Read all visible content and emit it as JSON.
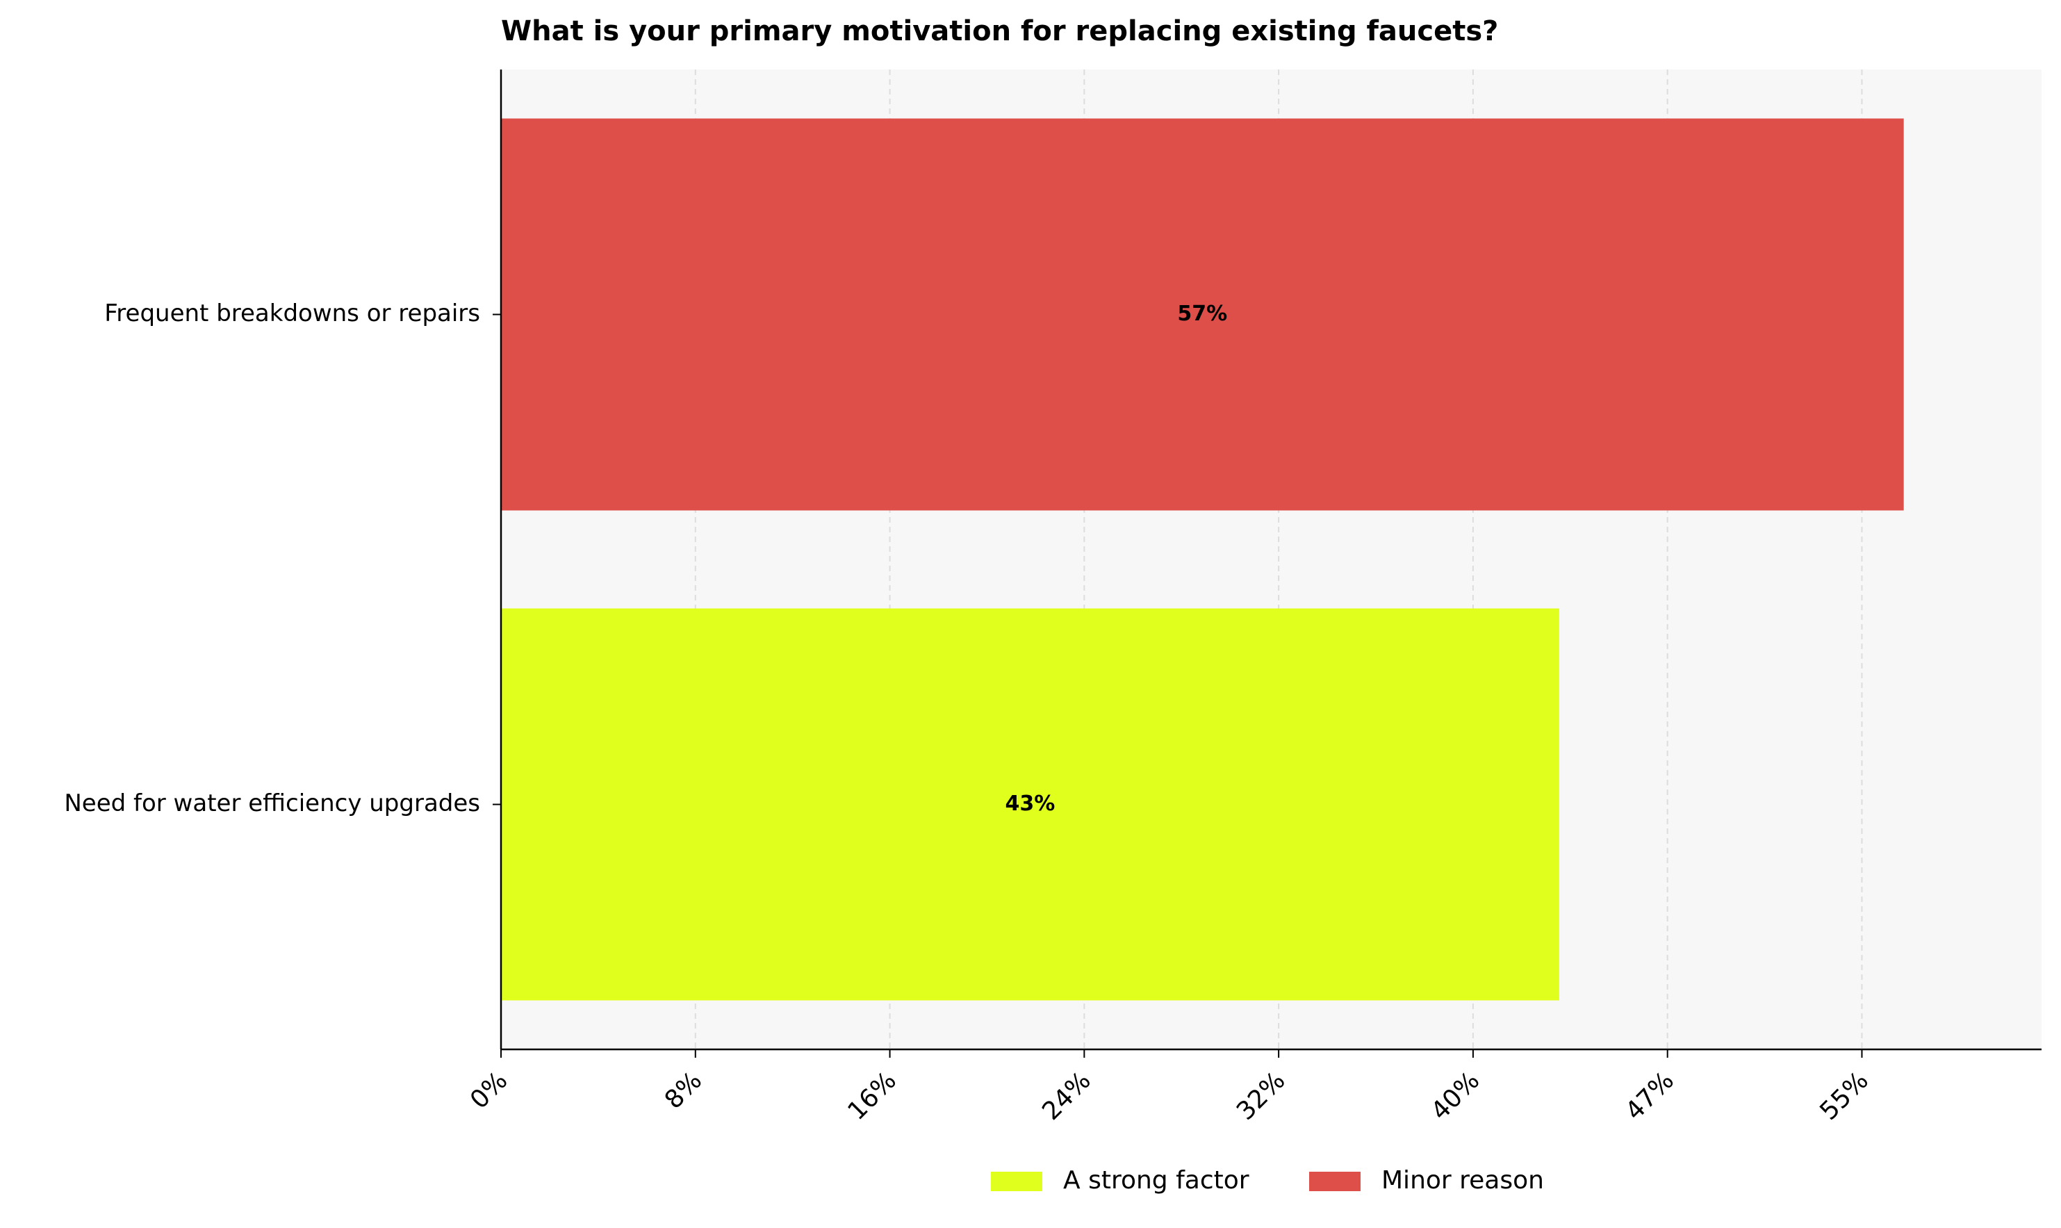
{
  "chart_data": {
    "type": "bar",
    "orientation": "horizontal",
    "title": "What is your primary motivation for replacing existing faucets?",
    "categories": [
      "Frequent breakdowns or repairs",
      "Need for water efficiency upgrades"
    ],
    "series": [
      {
        "name": "A strong factor",
        "color": "#e1ff1c",
        "values": [
          null,
          43
        ],
        "value_labels": [
          null,
          "43%"
        ]
      },
      {
        "name": "Minor reason",
        "color": "#de4f4a",
        "values": [
          57,
          null
        ],
        "value_labels": [
          "57%",
          null
        ]
      }
    ],
    "xlim": [
      0,
      62.6
    ],
    "xticks": [
      {
        "value": 0,
        "label": "0%"
      },
      {
        "value": 7.9,
        "label": "8%"
      },
      {
        "value": 15.8,
        "label": "16%"
      },
      {
        "value": 23.7,
        "label": "24%"
      },
      {
        "value": 31.6,
        "label": "32%"
      },
      {
        "value": 39.5,
        "label": "40%"
      },
      {
        "value": 47.4,
        "label": "47%"
      },
      {
        "value": 55.3,
        "label": "55%"
      }
    ],
    "grid": true,
    "legend": "bottom"
  }
}
